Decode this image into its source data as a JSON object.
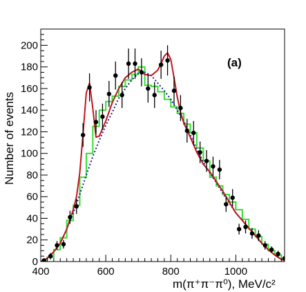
{
  "chart_data": {
    "type": "scatter",
    "xlabel": "m(π⁺π⁻π⁰), MeV/c²",
    "ylabel": "Number of events",
    "panel_label": "(a)",
    "xlim": [
      400,
      1150
    ],
    "ylim": [
      0,
      215
    ],
    "x_ticks": [
      400,
      600,
      800,
      1000
    ],
    "y_ticks": [
      0,
      20,
      40,
      60,
      80,
      100,
      120,
      140,
      160,
      180,
      200
    ],
    "grid": false,
    "legend": "none",
    "colors": {
      "data": "#000000",
      "fit": "#c0141e",
      "background": "#1a1a8c",
      "mc": "#33dd33"
    },
    "series": [
      {
        "kind": "points_with_errors",
        "x": [
          410,
          430,
          450,
          470,
          490,
          510,
          530,
          550,
          570,
          590,
          610,
          630,
          650,
          670,
          690,
          710,
          730,
          750,
          770,
          790,
          810,
          830,
          850,
          870,
          890,
          910,
          930,
          950,
          970,
          990,
          1010,
          1030,
          1050,
          1070,
          1090,
          1110,
          1130,
          1150
        ],
        "y": [
          1,
          5,
          15,
          16,
          41,
          51,
          117,
          161,
          129,
          134,
          155,
          172,
          154,
          183,
          183,
          175,
          160,
          154,
          182,
          186,
          158,
          142,
          121,
          119,
          101,
          93,
          88,
          85,
          53,
          59,
          30,
          32,
          26,
          24,
          15,
          11,
          7,
          3
        ],
        "err": [
          1,
          3,
          4,
          4,
          6,
          7,
          11,
          13,
          11,
          12,
          12,
          13,
          12,
          14,
          14,
          13,
          13,
          12,
          13,
          14,
          13,
          12,
          11,
          11,
          10,
          10,
          9,
          9,
          7,
          8,
          5,
          6,
          5,
          5,
          4,
          3,
          3,
          2
        ]
      },
      {
        "kind": "line",
        "x": [
          400,
          420,
          440,
          460,
          480,
          500,
          510,
          520,
          530,
          540,
          550,
          560,
          570,
          580,
          600,
          620,
          640,
          660,
          680,
          700,
          720,
          740,
          760,
          770,
          780,
          790,
          800,
          810,
          820,
          830,
          840,
          860,
          880,
          900,
          920,
          940,
          960,
          980,
          1000,
          1020,
          1040,
          1060,
          1080,
          1100,
          1120,
          1140,
          1150
        ],
        "y": [
          0,
          3,
          9,
          17,
          30,
          48,
          60,
          82,
          118,
          156,
          165,
          142,
          115,
          116,
          130,
          147,
          160,
          170,
          175,
          178,
          173,
          172,
          177,
          183,
          190,
          193,
          187,
          170,
          152,
          138,
          128,
          115,
          101,
          90,
          83,
          74,
          65,
          55,
          45,
          38,
          31,
          24,
          17,
          11,
          6,
          2,
          1
        ]
      },
      {
        "kind": "dotted_line",
        "x": [
          400,
          420,
          440,
          460,
          480,
          500,
          520,
          540,
          560,
          580,
          600,
          620,
          640,
          660,
          680,
          700,
          720,
          740,
          760,
          780,
          800,
          820,
          840,
          860,
          880,
          900,
          920,
          940,
          960,
          980,
          1000,
          1020,
          1040,
          1060,
          1080,
          1100,
          1120,
          1140,
          1150
        ],
        "y": [
          0,
          3,
          9,
          17,
          30,
          45,
          62,
          80,
          97,
          112,
          126,
          138,
          151,
          160,
          168,
          174,
          175,
          172,
          165,
          158,
          150,
          140,
          130,
          117,
          104,
          92,
          82,
          73,
          63,
          54,
          45,
          38,
          31,
          24,
          17,
          11,
          6,
          2,
          1
        ]
      },
      {
        "kind": "step",
        "edges": [
          400,
          420,
          440,
          460,
          480,
          500,
          520,
          540,
          560,
          580,
          600,
          620,
          640,
          660,
          680,
          700,
          720,
          740,
          760,
          780,
          800,
          820,
          840,
          860,
          880,
          900,
          920,
          940,
          960,
          980,
          1000,
          1020,
          1040,
          1060,
          1080,
          1100,
          1120,
          1140,
          1150
        ],
        "y": [
          0,
          4,
          11,
          22,
          38,
          52,
          78,
          100,
          125,
          140,
          148,
          153,
          162,
          168,
          173,
          180,
          163,
          162,
          157,
          150,
          143,
          137,
          127,
          119,
          105,
          93,
          78,
          70,
          62,
          55,
          48,
          39,
          30,
          23,
          16,
          10,
          6,
          3
        ]
      }
    ]
  }
}
